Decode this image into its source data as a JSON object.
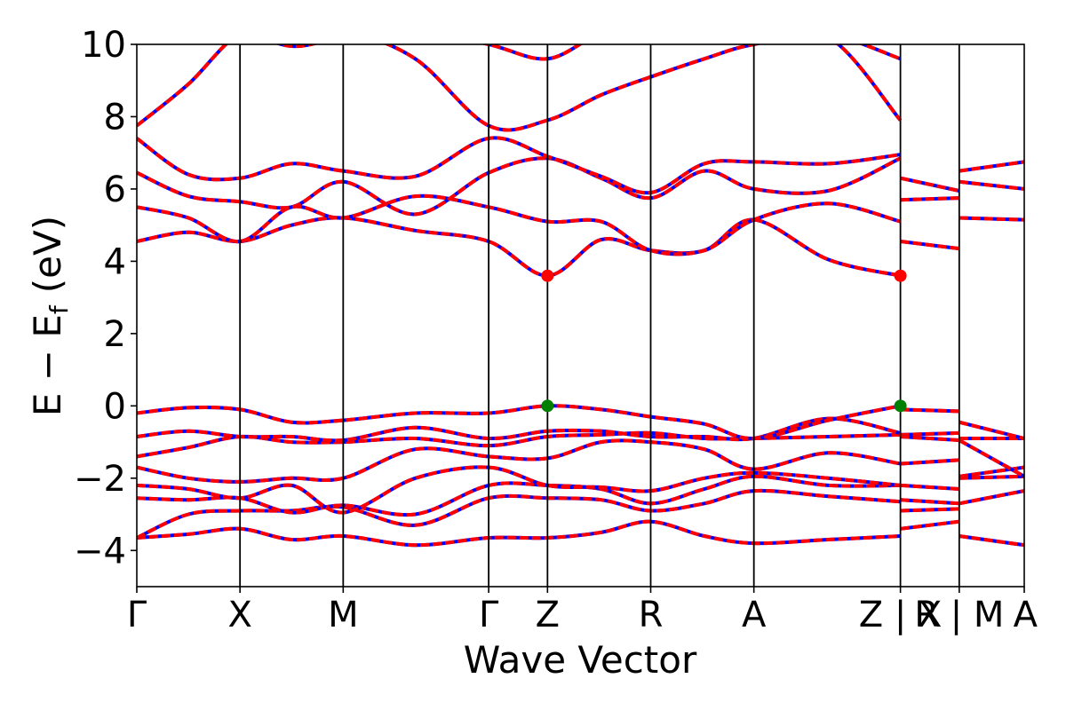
{
  "chart_data": {
    "type": "line",
    "title": "",
    "xlabel": "Wave Vector",
    "ylabel_parts": {
      "main": "E − E",
      "sub": "f",
      "unit": "(eV)"
    },
    "ylim": [
      -5,
      10
    ],
    "yticks": [
      {
        "value": 10,
        "label": "10"
      },
      {
        "value": 8,
        "label": "8"
      },
      {
        "value": 6,
        "label": "6"
      },
      {
        "value": 4,
        "label": "4"
      },
      {
        "value": 2,
        "label": "2"
      },
      {
        "value": 0,
        "label": "0"
      },
      {
        "value": -2,
        "label": "−2"
      },
      {
        "value": -4,
        "label": "−4"
      }
    ],
    "xlim": [
      0,
      8.6
    ],
    "kpoints": [
      {
        "x": 0,
        "label": "Γ"
      },
      {
        "x": 1.0,
        "label": "X"
      },
      {
        "x": 2.0,
        "label": "M"
      },
      {
        "x": 3.41,
        "label": "Γ"
      },
      {
        "x": 3.98,
        "label": "Z"
      },
      {
        "x": 4.98,
        "label": "R"
      },
      {
        "x": 5.98,
        "label": "A"
      },
      {
        "x": 7.4,
        "label": "Z | X"
      },
      {
        "x": 7.97,
        "label": "R | M"
      },
      {
        "x": 8.6,
        "label": "A"
      }
    ],
    "grid": false,
    "legend": "none",
    "colors": {
      "dft": "#0000ff",
      "fit": "#ff0000",
      "vbm": "#008000",
      "cbm": "#ff0000"
    },
    "markers": [
      {
        "name": "CBM",
        "x": 3.98,
        "y": 3.6,
        "color": "#ff0000"
      },
      {
        "name": "CBM",
        "x": 7.4,
        "y": 3.6,
        "color": "#ff0000"
      },
      {
        "name": "VBM",
        "x": 3.98,
        "y": 0.0,
        "color": "#008000"
      },
      {
        "name": "VBM",
        "x": 7.4,
        "y": 0.0,
        "color": "#008000"
      }
    ],
    "bands": [
      {
        "x": [
          0,
          0.5,
          1.0,
          1.5,
          2.0,
          2.7,
          3.41,
          3.98,
          4.5,
          4.98,
          5.5,
          5.98,
          6.7,
          7.4
        ],
        "y": [
          -3.65,
          -3.55,
          -3.4,
          -3.7,
          -3.6,
          -3.85,
          -3.65,
          -3.65,
          -3.5,
          -3.2,
          -3.6,
          -3.8,
          -3.7,
          -3.6
        ]
      },
      {
        "x": [
          0,
          0.5,
          1.0,
          1.5,
          2.0,
          2.7,
          3.41,
          3.98,
          4.5,
          4.98,
          5.5,
          5.98,
          6.7,
          7.4
        ],
        "y": [
          -3.65,
          -3.0,
          -2.9,
          -2.9,
          -2.8,
          -3.3,
          -2.55,
          -2.55,
          -2.6,
          -2.9,
          -2.7,
          -2.35,
          -2.5,
          -2.65
        ]
      },
      {
        "x": [
          0,
          0.5,
          1.0,
          1.5,
          2.0,
          2.7,
          3.41,
          3.98,
          4.5,
          4.98,
          5.5,
          5.98,
          6.7,
          7.4
        ],
        "y": [
          -2.55,
          -2.6,
          -2.55,
          -2.95,
          -2.75,
          -3.0,
          -2.2,
          -2.2,
          -2.3,
          -2.7,
          -2.3,
          -1.95,
          -2.2,
          -2.2
        ]
      },
      {
        "x": [
          0,
          0.5,
          1.0,
          1.5,
          2.0,
          2.7,
          3.41,
          3.98,
          4.5,
          4.98,
          5.5,
          5.98,
          6.7,
          7.4
        ],
        "y": [
          -2.2,
          -2.3,
          -2.55,
          -2.2,
          -2.95,
          -2.0,
          -1.7,
          -2.2,
          -2.25,
          -2.35,
          -2.0,
          -1.85,
          -2.0,
          -2.2
        ]
      },
      {
        "x": [
          0,
          0.5,
          1.0,
          1.5,
          2.0,
          2.7,
          3.41,
          3.98,
          4.5,
          4.98,
          5.5,
          5.98,
          6.7,
          7.4
        ],
        "y": [
          -1.7,
          -2.0,
          -2.1,
          -2.0,
          -2.0,
          -1.2,
          -1.4,
          -1.45,
          -1.0,
          -1.0,
          -1.2,
          -1.75,
          -1.3,
          -1.6
        ]
      },
      {
        "x": [
          0,
          0.5,
          1.0,
          1.5,
          2.0,
          2.7,
          3.41,
          3.98,
          4.5,
          4.98,
          5.5,
          5.98,
          6.7,
          7.4
        ],
        "y": [
          -1.4,
          -1.15,
          -0.85,
          -1.0,
          -1.0,
          -0.9,
          -1.1,
          -0.85,
          -0.8,
          -0.75,
          -0.9,
          -0.9,
          -0.85,
          -0.8
        ]
      },
      {
        "x": [
          0,
          0.5,
          1.0,
          1.5,
          2.0,
          2.7,
          3.41,
          3.98,
          4.5,
          4.98,
          5.5,
          5.98,
          6.7,
          7.4
        ],
        "y": [
          -0.85,
          -0.7,
          -0.85,
          -0.85,
          -0.95,
          -0.6,
          -0.9,
          -0.7,
          -0.7,
          -0.85,
          -0.85,
          -0.9,
          -0.35,
          -0.75
        ]
      },
      {
        "x": [
          0,
          0.5,
          1.0,
          1.5,
          2.0,
          2.7,
          3.41,
          3.98,
          4.5,
          4.98,
          5.5,
          5.98,
          6.7,
          7.4
        ],
        "y": [
          -0.2,
          -0.05,
          -0.1,
          -0.45,
          -0.4,
          -0.2,
          -0.2,
          0.0,
          -0.1,
          -0.3,
          -0.5,
          -0.9,
          -0.4,
          0.0
        ]
      },
      {
        "x": [
          0,
          0.5,
          1.0,
          1.5,
          2.0,
          2.7,
          3.41,
          3.98,
          4.5,
          4.98,
          5.5,
          5.98,
          6.7,
          7.4
        ],
        "y": [
          4.55,
          4.8,
          4.55,
          5.0,
          5.2,
          4.85,
          4.55,
          3.6,
          4.6,
          4.3,
          4.3,
          5.15,
          4.05,
          3.6
        ]
      },
      {
        "x": [
          0,
          0.5,
          1.0,
          1.5,
          2.0,
          2.7,
          3.41,
          3.98,
          4.5,
          4.98,
          5.5,
          5.98,
          6.7,
          7.4
        ],
        "y": [
          5.5,
          5.2,
          4.55,
          5.5,
          5.2,
          5.8,
          5.5,
          5.1,
          5.1,
          4.3,
          4.3,
          5.15,
          5.6,
          5.1
        ]
      },
      {
        "x": [
          0,
          0.5,
          1.0,
          1.5,
          2.0,
          2.7,
          3.41,
          3.98,
          4.5,
          4.98,
          5.5,
          5.98,
          6.7,
          7.4
        ],
        "y": [
          6.45,
          5.8,
          5.65,
          5.5,
          6.2,
          5.3,
          6.45,
          6.85,
          6.3,
          5.75,
          6.5,
          6.0,
          5.95,
          6.85
        ]
      },
      {
        "x": [
          0,
          0.5,
          1.0,
          1.5,
          2.0,
          2.7,
          3.41,
          3.98,
          4.5,
          4.98,
          5.5,
          5.98,
          6.7,
          7.4
        ],
        "y": [
          7.4,
          6.4,
          6.3,
          6.7,
          6.5,
          6.35,
          7.4,
          6.9,
          6.35,
          5.9,
          6.7,
          6.75,
          6.7,
          6.95
        ]
      },
      {
        "x": [
          0,
          0.5,
          1.0,
          1.5,
          2.0,
          2.7,
          3.41,
          3.98,
          4.5,
          4.98,
          5.5,
          5.98,
          6.7,
          7.4
        ],
        "y": [
          7.75,
          8.9,
          10.3,
          10.4,
          10.4,
          9.6,
          7.75,
          7.9,
          8.6,
          9.1,
          9.6,
          10.0,
          10.2,
          7.9
        ]
      },
      {
        "x": [
          0,
          0.5,
          1.0,
          1.5,
          2.0,
          2.7,
          3.41,
          3.98,
          4.5,
          4.98,
          5.5,
          5.98,
          6.7,
          7.4
        ],
        "y": [
          10.4,
          10.4,
          10.4,
          9.95,
          10.2,
          10.4,
          10.0,
          9.6,
          10.3,
          10.4,
          10.4,
          10.4,
          10.3,
          9.6
        ]
      },
      {
        "x": [
          7.4,
          7.97
        ],
        "y": [
          -3.4,
          -3.2
        ]
      },
      {
        "x": [
          7.4,
          7.97
        ],
        "y": [
          -2.9,
          -2.85
        ]
      },
      {
        "x": [
          7.4,
          7.97
        ],
        "y": [
          -2.6,
          -2.7
        ]
      },
      {
        "x": [
          7.4,
          7.97
        ],
        "y": [
          -2.2,
          -2.3
        ]
      },
      {
        "x": [
          7.4,
          7.97
        ],
        "y": [
          -1.6,
          -1.5
        ]
      },
      {
        "x": [
          7.4,
          7.97
        ],
        "y": [
          -0.8,
          -0.75
        ]
      },
      {
        "x": [
          7.4,
          7.97
        ],
        "y": [
          -0.85,
          -0.95
        ]
      },
      {
        "x": [
          7.4,
          7.97
        ],
        "y": [
          -0.1,
          -0.15
        ]
      },
      {
        "x": [
          7.4,
          7.97
        ],
        "y": [
          4.55,
          4.35
        ]
      },
      {
        "x": [
          7.4,
          7.97
        ],
        "y": [
          5.7,
          5.75
        ]
      },
      {
        "x": [
          7.4,
          7.97
        ],
        "y": [
          6.3,
          5.95
        ]
      },
      {
        "x": [
          7.97,
          8.6
        ],
        "y": [
          -3.6,
          -3.85
        ]
      },
      {
        "x": [
          7.97,
          8.6
        ],
        "y": [
          -2.7,
          -2.35
        ]
      },
      {
        "x": [
          7.97,
          8.6
        ],
        "y": [
          -2.0,
          -1.95
        ]
      },
      {
        "x": [
          7.97,
          8.6
        ],
        "y": [
          -1.95,
          -1.7
        ]
      },
      {
        "x": [
          7.97,
          8.6
        ],
        "y": [
          -0.95,
          -1.95
        ]
      },
      {
        "x": [
          7.97,
          8.6
        ],
        "y": [
          -0.9,
          -0.9
        ]
      },
      {
        "x": [
          7.97,
          8.6
        ],
        "y": [
          -0.45,
          -0.9
        ]
      },
      {
        "x": [
          7.97,
          8.6
        ],
        "y": [
          5.2,
          5.15
        ]
      },
      {
        "x": [
          7.97,
          8.6
        ],
        "y": [
          6.2,
          6.0
        ]
      },
      {
        "x": [
          7.97,
          8.6
        ],
        "y": [
          6.5,
          6.75
        ]
      }
    ]
  }
}
